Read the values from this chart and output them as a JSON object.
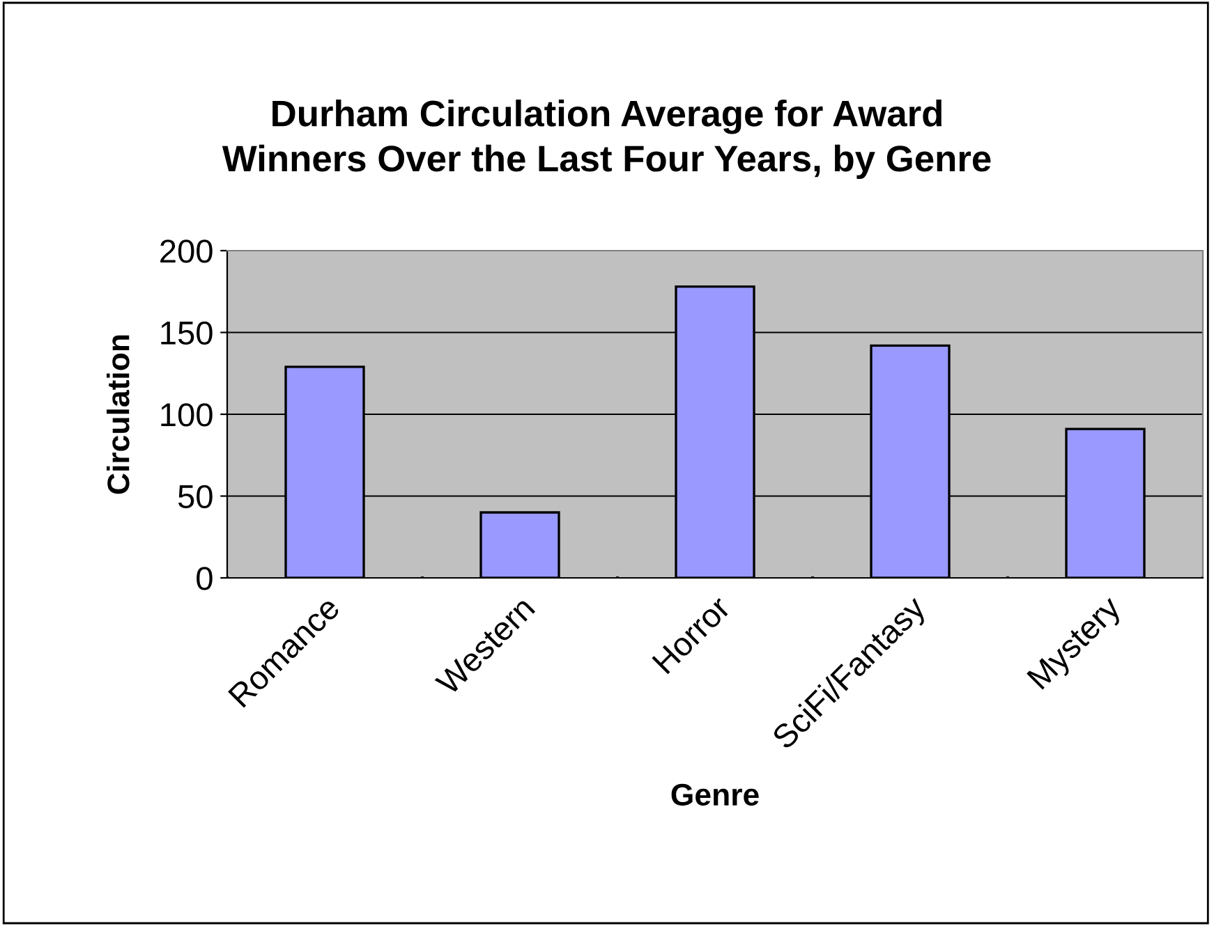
{
  "chart_data": {
    "type": "bar",
    "title": "Durham Circulation Average for Award\nWinners Over the Last Four Years, by Genre",
    "xlabel": "Genre",
    "ylabel": "Circulation",
    "categories": [
      "Romance",
      "Western",
      "Horror",
      "SciFi/Fantasy",
      "Mystery"
    ],
    "values": [
      129,
      40,
      178,
      142,
      91
    ],
    "color": "#9999ff",
    "ylim": [
      0,
      200
    ],
    "yticks": [
      0,
      50,
      100,
      150,
      200
    ],
    "grid": "y"
  }
}
